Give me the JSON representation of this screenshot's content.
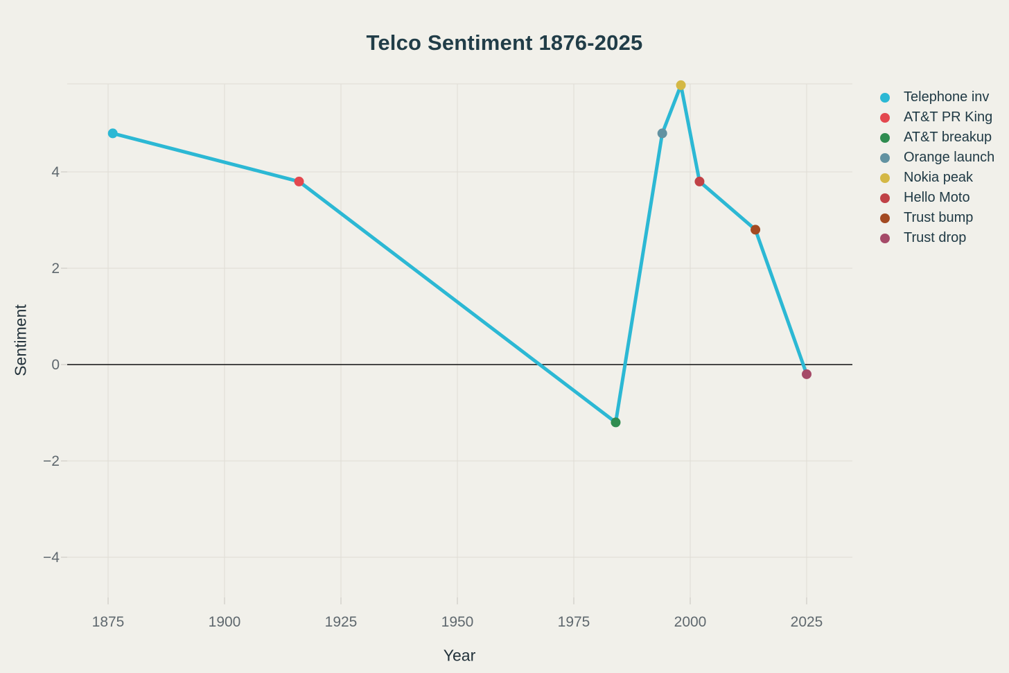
{
  "title": "Telco Sentiment 1876-2025",
  "chart_data": {
    "type": "line",
    "title": "Telco Sentiment 1876-2025",
    "xlabel": "Year",
    "ylabel": "Sentiment",
    "xlim": [
      1866,
      2035
    ],
    "ylim": [
      -4.85,
      5.85
    ],
    "grid": true,
    "legend_position": "right-outside",
    "zero_line": true,
    "line_color": "#2cb8d4",
    "x_ticks": [
      {
        "value": 1875,
        "label": "1875"
      },
      {
        "value": 1900,
        "label": "1900"
      },
      {
        "value": 1925,
        "label": "1925"
      },
      {
        "value": 1950,
        "label": "1950"
      },
      {
        "value": 1975,
        "label": "1975"
      },
      {
        "value": 2000,
        "label": "2000"
      },
      {
        "value": 2025,
        "label": "2025"
      }
    ],
    "y_ticks": [
      {
        "value": 4,
        "label": "4"
      },
      {
        "value": 2,
        "label": "2"
      },
      {
        "value": 0,
        "label": "0"
      },
      {
        "value": -2,
        "label": "−2"
      },
      {
        "value": -4,
        "label": "−4"
      }
    ],
    "points": [
      {
        "label": "Telephone inv",
        "year": 1876,
        "sentiment": 4.8,
        "color": "#2cb8d4"
      },
      {
        "label": "AT&T PR King",
        "year": 1916,
        "sentiment": 3.8,
        "color": "#e3484f"
      },
      {
        "label": "AT&T breakup",
        "year": 1984,
        "sentiment": -1.2,
        "color": "#2f8c50"
      },
      {
        "label": "Orange launch",
        "year": 1994,
        "sentiment": 4.8,
        "color": "#6292a1"
      },
      {
        "label": "Nokia peak",
        "year": 1998,
        "sentiment": 5.8,
        "color": "#d4b845"
      },
      {
        "label": "Hello Moto",
        "year": 2002,
        "sentiment": 3.8,
        "color": "#c04247"
      },
      {
        "label": "Trust bump",
        "year": 2014,
        "sentiment": 2.8,
        "color": "#a34a22"
      },
      {
        "label": "Trust drop",
        "year": 2025,
        "sentiment": -0.2,
        "color": "#a54a68"
      }
    ]
  },
  "colors": {
    "background": "#f1f0ea",
    "grid": "#dedcd4",
    "zero_line": "#2e2e2e",
    "tick_mark": "#c6c5bd",
    "tick_label": "#5f686e",
    "axis_title": "#22313a",
    "title": "#213d48"
  }
}
